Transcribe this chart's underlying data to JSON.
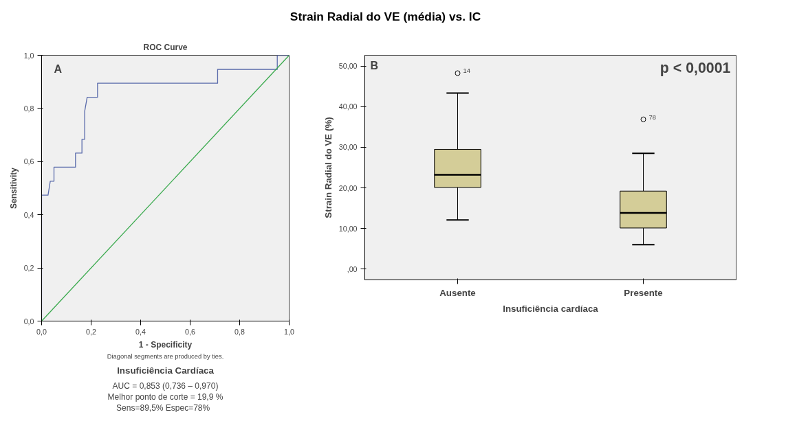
{
  "chart_data": [
    {
      "type": "line",
      "title": "ROC Curve",
      "xlabel": "1 - Specificity",
      "ylabel": "Sensitivity",
      "annotations": [
        "Strain Radial do VE (média) vs. IC",
        "A",
        "Diagonal segments are produced by ties.",
        "Insuficiência Cardíaca",
        "AUC = 0,853 (0,736 – 0,970)",
        "Melhor ponto de corte = 19,9 %",
        "Sens=89,5%   Espec=78%"
      ],
      "series": [
        {
          "color": "#5a6bab",
          "x": [
            0,
            0,
            0.026,
            0.035,
            0.05,
            0.05,
            0.137,
            0.137,
            0.163,
            0.163,
            0.174,
            0.174,
            0.184,
            0.226,
            0.226,
            0.711,
            0.711,
            0.952,
            0.952,
            1.0
          ],
          "values": [
            0,
            0.474,
            0.474,
            0.526,
            0.526,
            0.579,
            0.579,
            0.632,
            0.632,
            0.684,
            0.684,
            0.789,
            0.842,
            0.842,
            0.895,
            0.895,
            0.947,
            0.947,
            1.0,
            1.0
          ]
        },
        {
          "color": "#3aaa4e",
          "x": [
            0,
            1
          ],
          "values": [
            0,
            1
          ]
        }
      ],
      "xlim": [
        0,
        1
      ],
      "ylim": [
        0,
        1
      ],
      "xticks": [
        {
          "value": 0,
          "label": "0,0"
        },
        {
          "value": 0.2,
          "label": "0,2"
        },
        {
          "value": 0.4,
          "label": "0,4"
        },
        {
          "value": 0.6,
          "label": "0,6"
        },
        {
          "value": 0.8,
          "label": "0,8"
        },
        {
          "value": 1,
          "label": "1,0"
        }
      ],
      "yticks": [
        {
          "value": 0,
          "label": "0,0"
        },
        {
          "value": 0.2,
          "label": "0,2"
        },
        {
          "value": 0.4,
          "label": "0,4"
        },
        {
          "value": 0.6,
          "label": "0,6"
        },
        {
          "value": 0.8,
          "label": "0,8"
        },
        {
          "value": 1,
          "label": "1,0"
        }
      ],
      "grid": false
    },
    {
      "type": "box",
      "xlabel": "Insuficiência cardíaca",
      "ylabel": "Strain Radial do VE (%)",
      "categories": [
        "Ausente",
        "Presente"
      ],
      "annotations": [
        "B",
        "p < 0,0001",
        "14",
        "78"
      ],
      "series": [
        {
          "color": "#d4cd98",
          "boxes": [
            {
              "low": 12.1,
              "q1": 20.1,
              "median": 23.2,
              "q3": 29.5,
              "high": 43.4,
              "outliers": [
                48.3
              ]
            },
            {
              "low": 6.0,
              "q1": 10.1,
              "median": 13.8,
              "q3": 19.2,
              "high": 28.5,
              "outliers": [
                36.9
              ]
            }
          ]
        }
      ],
      "ylim": [
        -2.7,
        52.7
      ],
      "yticks": [
        {
          "value": 0,
          "label": ",00"
        },
        {
          "value": 10,
          "label": "10,00"
        },
        {
          "value": 20,
          "label": "20,00"
        },
        {
          "value": 30,
          "label": "30,00"
        },
        {
          "value": 40,
          "label": "40,00"
        },
        {
          "value": 50,
          "label": "50,00"
        }
      ],
      "grid": false
    }
  ]
}
